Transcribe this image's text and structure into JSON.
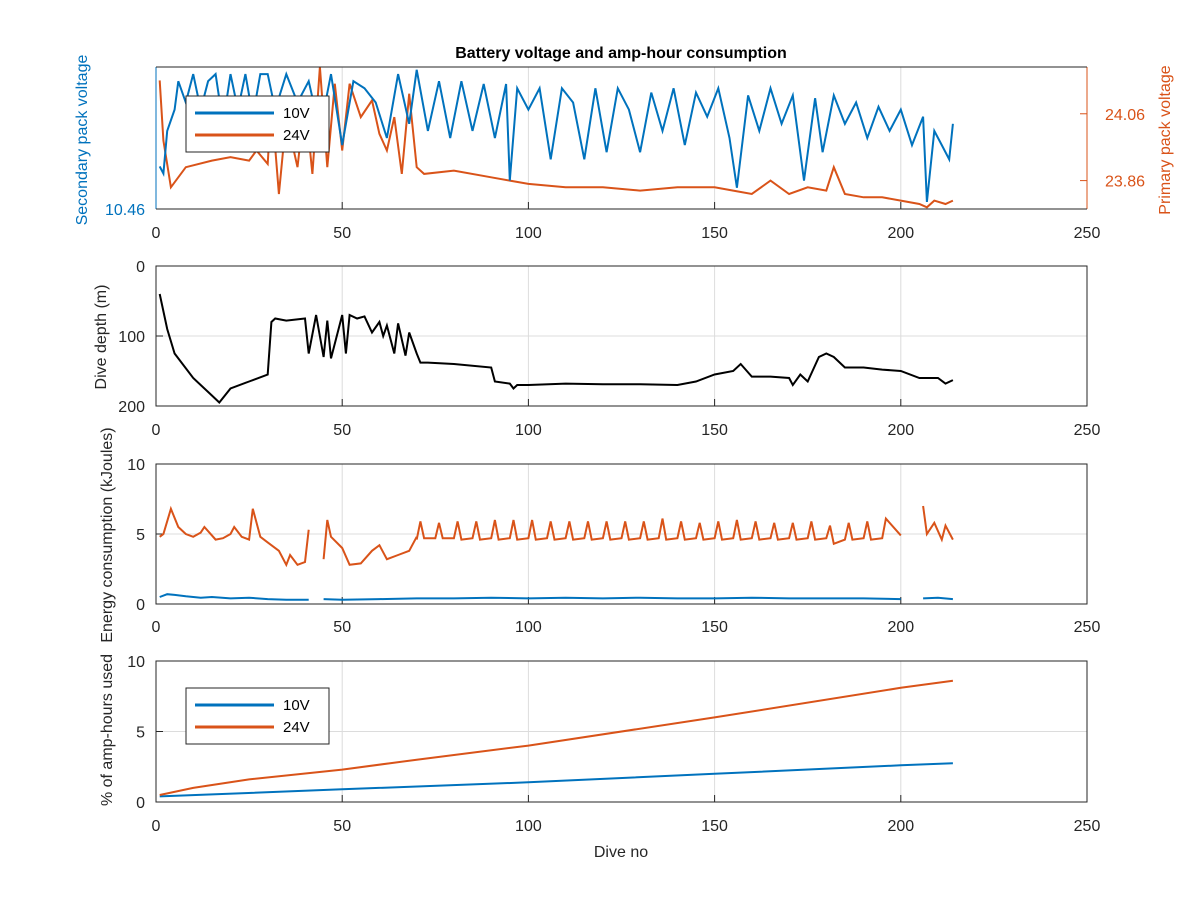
{
  "chart_data": [
    {
      "type": "line",
      "title": "Battery voltage and amp-hour consumption",
      "xlim": [
        0,
        250
      ],
      "xticks": [
        0,
        50,
        100,
        150,
        200,
        250
      ],
      "ylabel_left": "Secondary pack voltage",
      "ylabel_right": "Primary pack voltage",
      "yticks_left": [
        "10.46"
      ],
      "yticks_right": [
        "24.06",
        "23.86"
      ],
      "legend": {
        "location": "top-left",
        "entries": [
          "10V",
          "24V"
        ]
      },
      "series": [
        {
          "name": "10V",
          "color": "#0072bd",
          "x": [
            1,
            2,
            3,
            5,
            6,
            8,
            10,
            12,
            14,
            16,
            18,
            20,
            22,
            24,
            26,
            28,
            30,
            32,
            35,
            38,
            41,
            44,
            47,
            50,
            53,
            56,
            59,
            62,
            65,
            68,
            70,
            73,
            76,
            79,
            82,
            85,
            88,
            91,
            94,
            95,
            97,
            100,
            103,
            106,
            109,
            112,
            115,
            118,
            121,
            124,
            127,
            130,
            133,
            136,
            139,
            142,
            145,
            148,
            151,
            154,
            156,
            159,
            162,
            165,
            168,
            171,
            174,
            177,
            179,
            182,
            185,
            188,
            191,
            194,
            197,
            200,
            203,
            206,
            207,
            209,
            211,
            213,
            214
          ],
          "y": [
            0.3,
            0.25,
            0.55,
            0.7,
            0.9,
            0.75,
            0.95,
            0.7,
            0.9,
            0.95,
            0.6,
            0.95,
            0.7,
            0.95,
            0.65,
            0.95,
            0.95,
            0.7,
            0.95,
            0.75,
            0.9,
            0.55,
            0.95,
            0.45,
            0.9,
            0.85,
            0.75,
            0.5,
            0.95,
            0.6,
            0.98,
            0.55,
            0.9,
            0.5,
            0.9,
            0.55,
            0.88,
            0.5,
            0.88,
            0.2,
            0.85,
            0.7,
            0.85,
            0.35,
            0.85,
            0.75,
            0.35,
            0.85,
            0.4,
            0.85,
            0.7,
            0.4,
            0.82,
            0.55,
            0.85,
            0.45,
            0.82,
            0.65,
            0.85,
            0.5,
            0.15,
            0.8,
            0.55,
            0.85,
            0.6,
            0.8,
            0.2,
            0.78,
            0.4,
            0.8,
            0.6,
            0.75,
            0.5,
            0.72,
            0.55,
            0.7,
            0.45,
            0.65,
            0.05,
            0.55,
            0.45,
            0.35,
            0.6
          ]
        },
        {
          "name": "24V",
          "color": "#d95319",
          "x": [
            1,
            2,
            4,
            8,
            15,
            20,
            25,
            27,
            30,
            31,
            33,
            35,
            38,
            40,
            42,
            44,
            46,
            48,
            50,
            52,
            55,
            58,
            60,
            62,
            64,
            66,
            68,
            70,
            72,
            80,
            90,
            95,
            100,
            110,
            120,
            130,
            140,
            150,
            155,
            160,
            165,
            170,
            175,
            180,
            182,
            185,
            190,
            195,
            200,
            205,
            207,
            209,
            212,
            214
          ],
          "y": [
            24.16,
            23.98,
            23.84,
            23.9,
            23.92,
            23.93,
            23.92,
            23.95,
            23.91,
            24.1,
            23.82,
            24.05,
            23.9,
            24.1,
            23.88,
            24.2,
            23.9,
            24.15,
            23.95,
            24.15,
            24.05,
            24.1,
            24.0,
            23.95,
            24.05,
            23.88,
            24.12,
            23.9,
            23.88,
            23.89,
            23.87,
            23.86,
            23.85,
            23.84,
            23.84,
            23.83,
            23.84,
            23.84,
            23.83,
            23.82,
            23.86,
            23.82,
            23.84,
            23.83,
            23.9,
            23.82,
            23.81,
            23.81,
            23.8,
            23.79,
            23.78,
            23.8,
            23.79,
            23.8
          ]
        }
      ]
    },
    {
      "type": "line",
      "xlim": [
        0,
        250
      ],
      "ylim": [
        0,
        200
      ],
      "y_reversed": true,
      "xticks": [
        0,
        50,
        100,
        150,
        200,
        250
      ],
      "yticks": [
        0,
        100,
        200
      ],
      "ylabel": "Dive depth (m)",
      "series": [
        {
          "color": "#000000",
          "x": [
            1,
            3,
            5,
            10,
            15,
            17,
            20,
            25,
            30,
            31,
            32,
            35,
            40,
            41,
            43,
            45,
            46,
            47,
            50,
            51,
            52,
            54,
            56,
            58,
            60,
            61,
            62,
            64,
            65,
            67,
            68,
            70,
            71,
            73,
            80,
            90,
            91,
            95,
            96,
            97,
            100,
            110,
            120,
            130,
            140,
            145,
            150,
            155,
            157,
            160,
            165,
            170,
            171,
            173,
            175,
            178,
            180,
            182,
            185,
            190,
            195,
            200,
            205,
            210,
            212,
            214
          ],
          "y": [
            40,
            90,
            125,
            160,
            185,
            195,
            175,
            165,
            155,
            80,
            75,
            78,
            75,
            125,
            70,
            130,
            78,
            132,
            70,
            125,
            70,
            75,
            72,
            95,
            80,
            100,
            85,
            125,
            82,
            128,
            95,
            125,
            138,
            138,
            140,
            145,
            165,
            168,
            175,
            170,
            170,
            168,
            169,
            169,
            170,
            165,
            155,
            150,
            140,
            158,
            158,
            160,
            170,
            155,
            165,
            130,
            125,
            130,
            145,
            145,
            148,
            150,
            160,
            160,
            168,
            163
          ]
        }
      ]
    },
    {
      "type": "line",
      "xlim": [
        0,
        250
      ],
      "ylim": [
        0,
        10
      ],
      "xticks": [
        0,
        50,
        100,
        150,
        200,
        250
      ],
      "yticks": [
        0,
        5,
        10
      ],
      "ylabel": "Energy consumption (kJoules)",
      "series": [
        {
          "color": "#0072bd",
          "segments": [
            {
              "x": [
                1,
                3,
                5,
                8,
                12,
                15,
                20,
                25,
                30,
                35,
                41
              ],
              "y": [
                0.5,
                0.7,
                0.65,
                0.55,
                0.45,
                0.5,
                0.4,
                0.45,
                0.35,
                0.3,
                0.3
              ]
            },
            {
              "x": [
                45,
                50,
                60,
                70,
                80,
                90,
                100,
                110,
                120,
                130,
                140,
                150,
                160,
                170,
                180,
                190,
                200
              ],
              "y": [
                0.35,
                0.3,
                0.35,
                0.4,
                0.4,
                0.45,
                0.4,
                0.45,
                0.4,
                0.45,
                0.4,
                0.4,
                0.45,
                0.4,
                0.4,
                0.4,
                0.35
              ]
            },
            {
              "x": [
                206,
                210,
                214
              ],
              "y": [
                0.4,
                0.45,
                0.35
              ]
            }
          ]
        },
        {
          "color": "#d95319",
          "segments": [
            {
              "x": [
                1,
                2,
                4,
                6,
                8,
                10,
                12,
                13,
                16,
                18,
                20,
                21,
                23,
                25,
                26,
                28,
                30,
                33,
                35,
                36,
                38,
                40,
                41
              ],
              "y": [
                4.8,
                5.0,
                6.8,
                5.5,
                5.0,
                4.8,
                5.1,
                5.5,
                4.6,
                4.7,
                5.0,
                5.5,
                4.8,
                4.6,
                6.8,
                4.8,
                4.4,
                3.8,
                2.8,
                3.5,
                2.8,
                3.0,
                5.3
              ]
            },
            {
              "x": [
                45,
                46,
                47,
                50,
                52,
                55,
                58,
                60,
                62,
                65,
                68,
                70
              ],
              "y": [
                3.2,
                6.0,
                4.8,
                4.0,
                2.8,
                2.9,
                3.8,
                4.2,
                3.2,
                3.5,
                3.8,
                4.8
              ]
            },
            {
              "x": [
                70,
                71,
                72,
                75,
                76,
                77,
                80,
                81,
                82,
                85,
                86,
                87,
                90,
                91,
                92,
                95,
                96,
                97,
                100,
                101,
                102,
                105,
                106,
                107,
                110,
                111,
                112,
                115,
                116,
                117,
                120,
                121,
                122,
                125,
                126,
                127,
                130,
                131,
                132,
                135,
                136,
                137,
                140,
                141,
                142,
                145,
                146,
                147,
                150,
                151,
                152,
                155,
                156,
                157,
                160,
                161,
                162,
                165,
                166,
                167,
                170,
                171,
                172,
                175,
                176,
                177,
                180,
                181,
                182,
                185,
                186,
                187,
                190,
                191,
                192,
                195,
                196,
                200
              ],
              "y": [
                4.6,
                5.9,
                4.7,
                4.7,
                5.8,
                4.7,
                4.7,
                5.9,
                4.6,
                4.7,
                5.9,
                4.6,
                4.7,
                6.0,
                4.6,
                4.7,
                6.0,
                4.6,
                4.7,
                6.0,
                4.6,
                4.7,
                5.9,
                4.6,
                4.7,
                5.9,
                4.6,
                4.7,
                5.9,
                4.6,
                4.7,
                5.9,
                4.6,
                4.7,
                5.9,
                4.6,
                4.7,
                5.9,
                4.6,
                4.7,
                6.1,
                4.6,
                4.7,
                5.9,
                4.6,
                4.7,
                5.8,
                4.6,
                4.7,
                5.9,
                4.6,
                4.7,
                6.0,
                4.6,
                4.7,
                5.9,
                4.6,
                4.7,
                5.8,
                4.6,
                4.7,
                5.8,
                4.6,
                4.7,
                5.9,
                4.6,
                4.7,
                5.6,
                4.3,
                4.6,
                5.8,
                4.6,
                4.7,
                5.9,
                4.6,
                4.7,
                6.1,
                4.9
              ]
            },
            {
              "x": [
                206,
                207,
                209,
                211,
                212,
                214
              ],
              "y": [
                7.0,
                5.0,
                5.8,
                4.6,
                5.6,
                4.6
              ]
            }
          ]
        }
      ]
    },
    {
      "type": "line",
      "xlim": [
        0,
        250
      ],
      "ylim": [
        0,
        10
      ],
      "xticks": [
        0,
        50,
        100,
        150,
        200,
        250
      ],
      "yticks": [
        0,
        5,
        10
      ],
      "ylabel": "% of amp-hours used",
      "xlabel": "Dive no",
      "legend": {
        "location": "top-left",
        "entries": [
          "10V",
          "24V"
        ]
      },
      "series": [
        {
          "name": "10V",
          "color": "#0072bd",
          "x": [
            1,
            50,
            100,
            150,
            200,
            214
          ],
          "y": [
            0.4,
            0.9,
            1.4,
            2.0,
            2.6,
            2.75
          ]
        },
        {
          "name": "24V",
          "color": "#d95319",
          "x": [
            1,
            10,
            25,
            50,
            70,
            100,
            150,
            200,
            214
          ],
          "y": [
            0.5,
            1.0,
            1.6,
            2.3,
            3.0,
            4.0,
            6.0,
            8.1,
            8.6
          ]
        }
      ]
    }
  ]
}
